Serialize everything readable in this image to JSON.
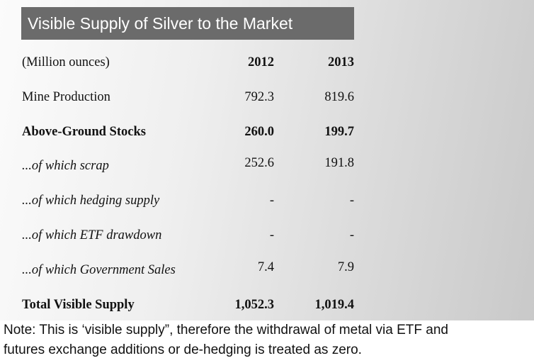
{
  "title": "Visible Supply of Silver to the Market",
  "table": {
    "header": [
      "(Million ounces)",
      "2012",
      "2013"
    ],
    "rows": [
      [
        "Mine Production",
        "792.3",
        "819.6"
      ],
      [
        "Above-Ground Stocks",
        "260.0",
        "199.7"
      ],
      [
        "...of which scrap",
        "252.6",
        "191.8"
      ],
      [
        "...of which hedging supply",
        "-",
        "-"
      ],
      [
        "...of which ETF drawdown",
        "-",
        "-"
      ],
      [
        "...of which Government Sales",
        "7.4",
        "7.9"
      ],
      [
        "Total Visible Supply",
        "1,052.3",
        "1,019.4"
      ]
    ]
  },
  "note": [
    "Note: This is ‘visible supply”, therefore the withdrawal of metal via ETF and",
    "futures exchange additions or de-hedging is treated as zero."
  ]
}
